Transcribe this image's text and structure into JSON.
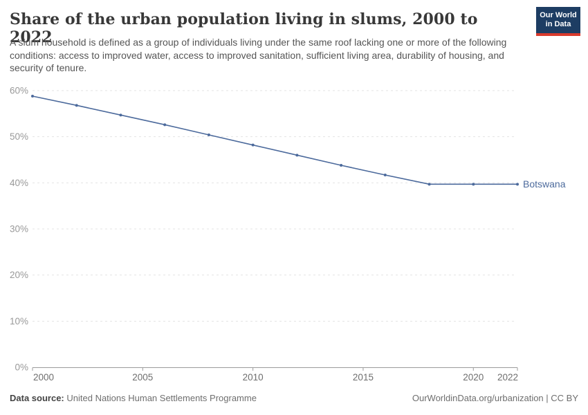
{
  "header": {
    "title": "Share of the urban population living in slums, 2000 to 2022",
    "subtitle": "A slum household is defined as a group of individuals living under the same roof lacking one or more of the following conditions: access to improved water, access to improved sanitation, sufficient living area, durability of housing, and security of tenure.",
    "logo": {
      "line1": "Our World",
      "line2": "in Data",
      "bg_color": "#1d3d63",
      "stripe_color": "#d93a2d"
    }
  },
  "chart_data": {
    "type": "line",
    "title": "Share of the urban population living in slums, 2000 to 2022",
    "xlabel": "",
    "ylabel": "",
    "xlim": [
      2000,
      2022
    ],
    "ylim": [
      0,
      60
    ],
    "grid": "horizontal-dashed",
    "legend": "end-of-line-label",
    "x": [
      2000,
      2002,
      2004,
      2006,
      2008,
      2010,
      2012,
      2014,
      2016,
      2018,
      2020,
      2022
    ],
    "series": [
      {
        "name": "Botswana",
        "color": "#4c6a9c",
        "values": [
          58.8,
          56.8,
          54.7,
          52.6,
          50.4,
          48.2,
          46.0,
          43.8,
          41.7,
          39.7,
          39.7,
          39.7
        ]
      }
    ],
    "x_ticks": [
      {
        "v": 2000,
        "label": "2000"
      },
      {
        "v": 2005,
        "label": "2005"
      },
      {
        "v": 2010,
        "label": "2010"
      },
      {
        "v": 2015,
        "label": "2015"
      },
      {
        "v": 2020,
        "label": "2020"
      },
      {
        "v": 2022,
        "label": "2022"
      }
    ],
    "y_ticks": [
      {
        "v": 0,
        "label": "0%"
      },
      {
        "v": 10,
        "label": "10%"
      },
      {
        "v": 20,
        "label": "20%"
      },
      {
        "v": 30,
        "label": "30%"
      },
      {
        "v": 40,
        "label": "40%"
      },
      {
        "v": 50,
        "label": "50%"
      },
      {
        "v": 60,
        "label": "60%"
      }
    ],
    "colors": {
      "gridline": "#e3e3e3",
      "axis": "#9b9b9b",
      "y_tick_label": "#999999",
      "x_tick_label": "#6e6e6e"
    }
  },
  "footer": {
    "source_label": "Data source:",
    "source_value": "United Nations Human Settlements Programme",
    "link_text": "OurWorldinData.org/urbanization | CC BY"
  }
}
